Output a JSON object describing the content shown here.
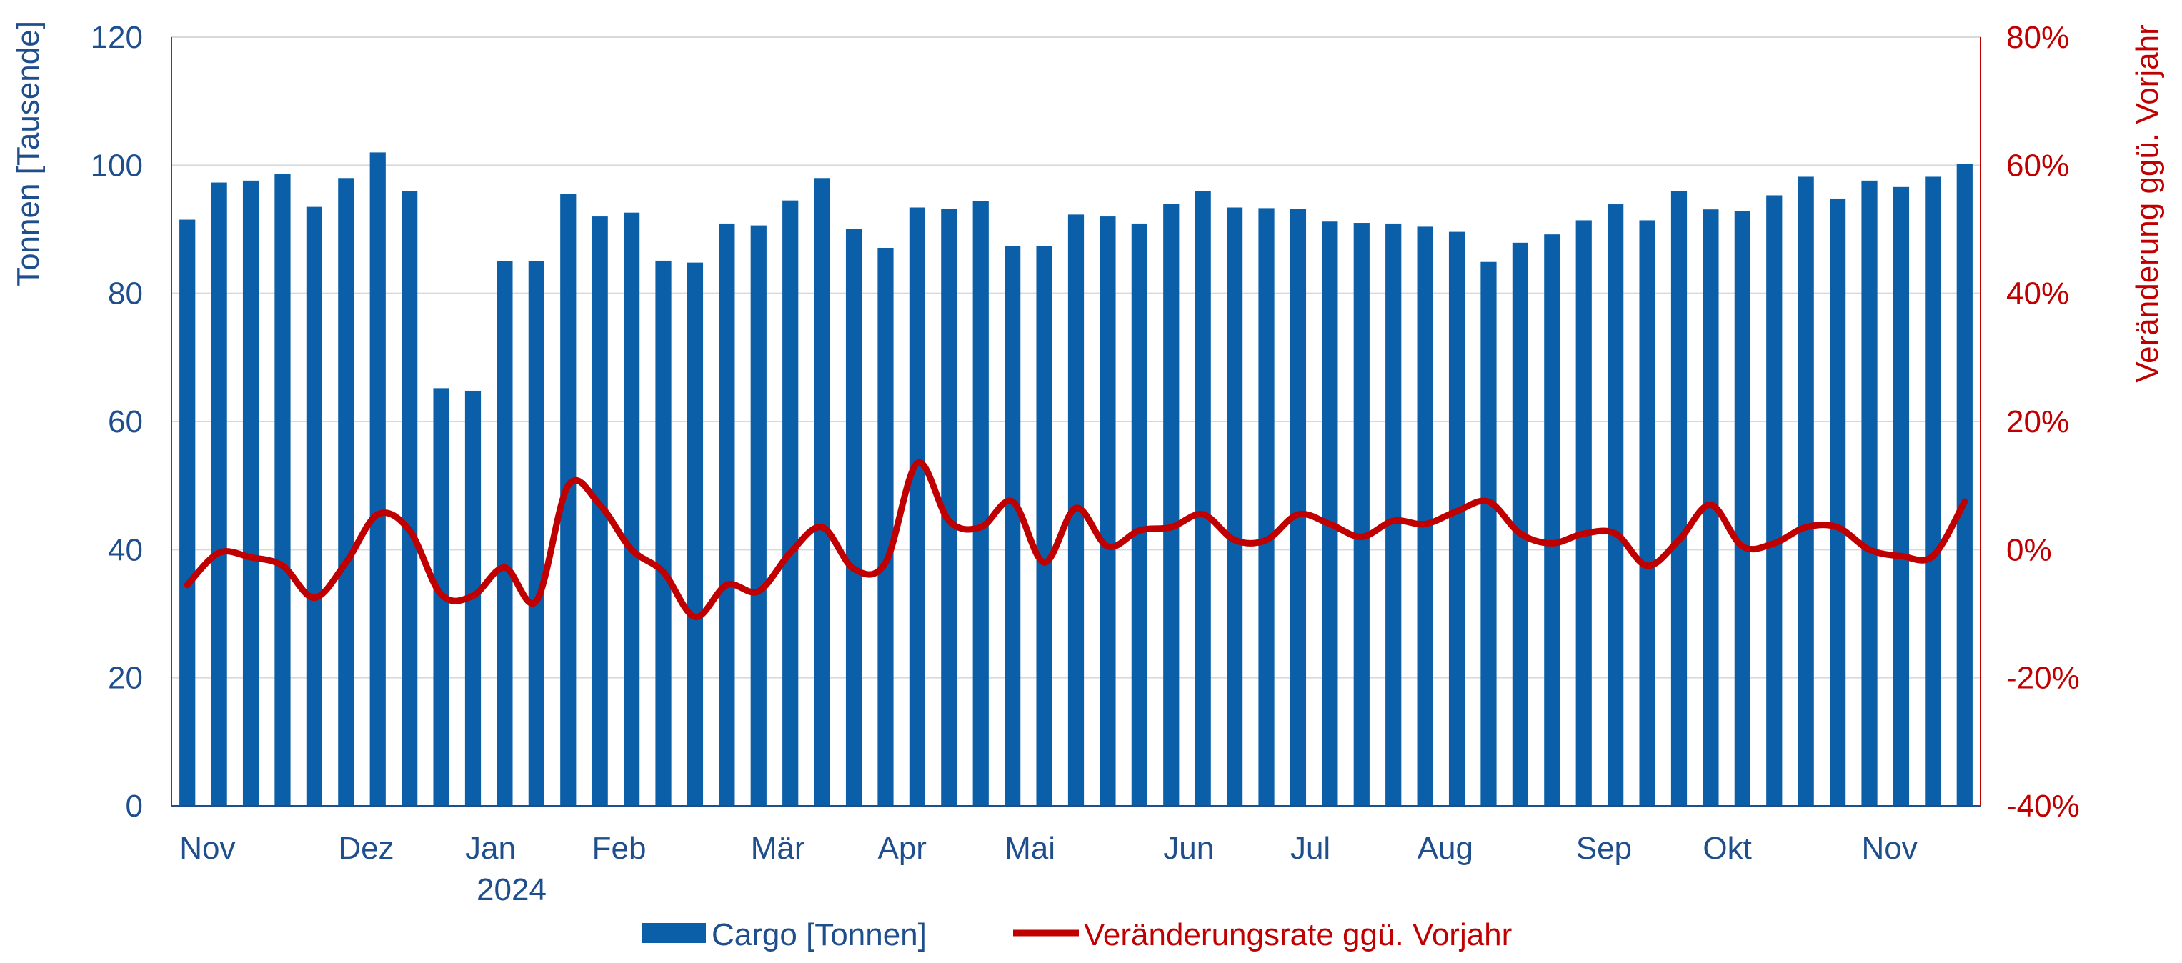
{
  "chart_data": {
    "type": "bar",
    "combo": "bar+line",
    "grid": true,
    "legend_position": "bottom",
    "colors": {
      "bars": "#0a5fa8",
      "line": "#c00000",
      "left_axis_text": "#1f4e8c",
      "right_axis_text": "#c00000",
      "grid": "#d9d9d9"
    },
    "y_left": {
      "label": "Tonnen [Tausende]",
      "lim": [
        0,
        120
      ],
      "ticks": [
        "0",
        "20",
        "40",
        "60",
        "80",
        "100",
        "120"
      ]
    },
    "y_right": {
      "label": "Veränderung ggü. Vorjahr",
      "lim": [
        -40,
        80
      ],
      "ticks": [
        "-40%",
        "-20%",
        "0%",
        "20%",
        "40%",
        "60%",
        "80%"
      ]
    },
    "x_ticks": [
      {
        "label": "Nov",
        "week": 0
      },
      {
        "label": "Dez",
        "week": 5
      },
      {
        "label": "Jan",
        "label2": "2024",
        "week": 9
      },
      {
        "label": "Feb",
        "week": 13
      },
      {
        "label": "Mär",
        "week": 18
      },
      {
        "label": "Apr",
        "week": 22
      },
      {
        "label": "Mai",
        "week": 26
      },
      {
        "label": "Jun",
        "week": 31
      },
      {
        "label": "Jul",
        "week": 35
      },
      {
        "label": "Aug",
        "week": 39
      },
      {
        "label": "Sep",
        "week": 44
      },
      {
        "label": "Okt",
        "week": 48
      },
      {
        "label": "Nov",
        "week": 53
      }
    ],
    "series": [
      {
        "name": "Cargo [Tonnen]",
        "type": "bar",
        "axis": "left",
        "values": [
          91.5,
          97.3,
          97.6,
          98.7,
          93.5,
          98.0,
          102.0,
          96.0,
          65.2,
          64.8,
          85.0,
          85.0,
          95.5,
          92.0,
          92.6,
          85.1,
          84.8,
          90.9,
          90.6,
          94.5,
          98.0,
          90.1,
          87.1,
          93.4,
          93.2,
          94.4,
          87.4,
          87.4,
          92.3,
          92.0,
          90.9,
          94.0,
          96.0,
          93.4,
          93.3,
          93.2,
          91.2,
          91.0,
          90.9,
          90.4,
          89.6,
          84.9,
          87.9,
          89.2,
          91.4,
          93.9,
          91.4,
          96.0,
          93.1,
          92.9,
          95.3,
          98.2,
          94.8,
          97.6,
          96.6,
          98.2,
          100.2
        ]
      },
      {
        "name": "Veränderungsrate ggü. Vorjahr",
        "type": "line",
        "axis": "right",
        "values": [
          -5.5,
          -0.5,
          -1.2,
          -2.5,
          -7.5,
          -2.0,
          5.5,
          3.0,
          -7.0,
          -7.2,
          -2.8,
          -8.0,
          10.0,
          7.0,
          0.0,
          -3.5,
          -10.5,
          -5.5,
          -6.5,
          -0.5,
          3.5,
          -3.0,
          -2.0,
          13.5,
          4.5,
          3.5,
          7.5,
          -2.0,
          6.5,
          0.5,
          3.0,
          3.5,
          5.5,
          1.5,
          1.5,
          5.5,
          4.0,
          2.0,
          4.5,
          4.0,
          6.0,
          7.5,
          2.5,
          1.0,
          2.5,
          2.5,
          -2.5,
          1.5,
          7.0,
          0.5,
          1.0,
          3.5,
          3.5,
          0.0,
          -1.0,
          -1.0,
          7.5
        ]
      }
    ]
  }
}
